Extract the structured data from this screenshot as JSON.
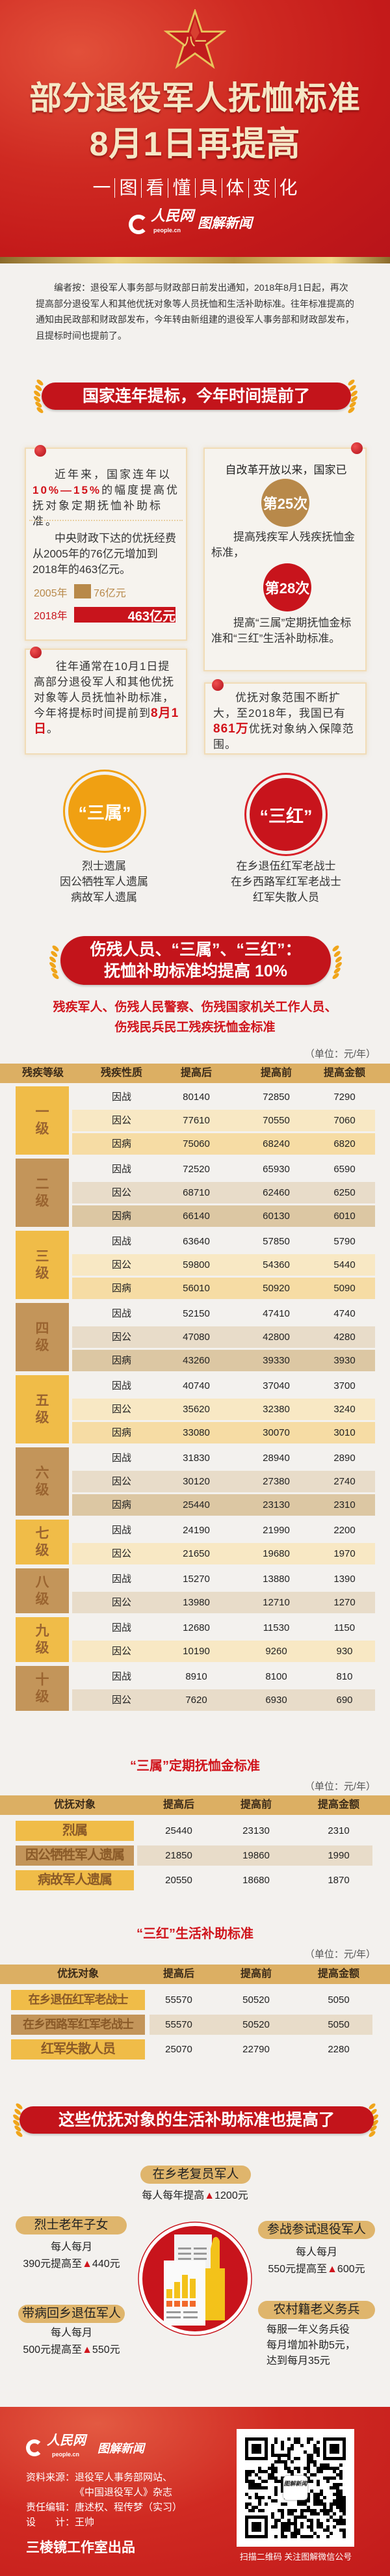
{
  "header": {
    "emblem_text": "八一",
    "title_line1": "部分退役军人抚恤标准",
    "title_line2": "8月1日再提高",
    "subtitle_chars": [
      "一",
      "图",
      "看",
      "懂",
      "具",
      "体",
      "变",
      "化"
    ],
    "logo_people": "人民网",
    "logo_people_sub": "people.cn",
    "logo_tujie": "图解新闻"
  },
  "intro": "编者按：退役军人事务部与财政部日前发出通知，2018年8月1日起，再次提高部分退役军人和其他优抚对象等人员抚恤和生活补助标准。往年标准提高的通知由民政部和财政部发布，今年转由新组建的退役军人事务部和财政部发布，且提标时间也提前了。",
  "section1": {
    "banner": "国家连年提标，今年时间提前了",
    "card_left_1": {
      "p1_before": "近年来，国家连年以",
      "p1_highlight": "10%—15%",
      "p1_after": "的幅度提高优抚对象定期抚恤补助标准。",
      "p2": "中央财政下达的优抚经费从2005年的76亿元增加到2018年的463亿元。",
      "bars": [
        {
          "year": "2005年",
          "label": "76亿元",
          "value": 76,
          "color": "#b8894a"
        },
        {
          "year": "2018年",
          "label": "463亿元",
          "value": 463,
          "color": "#c8141c"
        }
      ]
    },
    "card_right_1": {
      "p1": "自改革开放以来，国家已",
      "badge1": "第25次",
      "p2": "提高残疾军人残疾抚恤金标准，",
      "badge2": "第28次",
      "p3": "提高“三属”定期抚恤金标准和“三红”生活补助标准。"
    },
    "card_left_2": {
      "before": "往年通常在10月1日提高部分退役军人和其他优抚对象等人员抚恤补助标准，今年将提标时间提前到",
      "highlight": "8月1日",
      "after": "。"
    },
    "card_right_2": {
      "before": "优抚对象范围不断扩大，至2018年，我国已有",
      "highlight": "861万",
      "after": "优抚对象纳入保障范围。"
    },
    "sanshu": {
      "label": "“三属”",
      "items": [
        "烈士遗属",
        "因公牺牲军人遗属",
        "病故军人遗属"
      ],
      "color": "#f0a012"
    },
    "sanhong": {
      "label": "“三红”",
      "items": [
        "在乡退伍红军老战士",
        "在乡西路军红军老战士",
        "红军失散人员"
      ],
      "color": "#c8141c"
    }
  },
  "section2": {
    "banner_line1": "伤残人员、“三属”、“三红”：",
    "banner_line2": "抚恤补助标准均提高 10%",
    "subtitle_line1": "残疾军人、伤残人民警察、伤残国家机关工作人员、",
    "subtitle_line2": "伤残民兵民工残疾抚恤金标准",
    "unit": "（单位：元/年）",
    "headers": [
      "残疾等级",
      "残疾性质",
      "提高后",
      "提高前",
      "提高金额"
    ],
    "groups": [
      {
        "grade": "一级",
        "rows": [
          [
            "因战",
            "80140",
            "72850",
            "7290"
          ],
          [
            "因公",
            "77610",
            "70550",
            "7060"
          ],
          [
            "因病",
            "75060",
            "68240",
            "6820"
          ]
        ]
      },
      {
        "grade": "二级",
        "rows": [
          [
            "因战",
            "72520",
            "65930",
            "6590"
          ],
          [
            "因公",
            "68710",
            "62460",
            "6250"
          ],
          [
            "因病",
            "66140",
            "60130",
            "6010"
          ]
        ]
      },
      {
        "grade": "三级",
        "rows": [
          [
            "因战",
            "63640",
            "57850",
            "5790"
          ],
          [
            "因公",
            "59800",
            "54360",
            "5440"
          ],
          [
            "因病",
            "56010",
            "50920",
            "5090"
          ]
        ]
      },
      {
        "grade": "四级",
        "rows": [
          [
            "因战",
            "52150",
            "47410",
            "4740"
          ],
          [
            "因公",
            "47080",
            "42800",
            "4280"
          ],
          [
            "因病",
            "43260",
            "39330",
            "3930"
          ]
        ]
      },
      {
        "grade": "五级",
        "rows": [
          [
            "因战",
            "40740",
            "37040",
            "3700"
          ],
          [
            "因公",
            "35620",
            "32380",
            "3240"
          ],
          [
            "因病",
            "33080",
            "30070",
            "3010"
          ]
        ]
      },
      {
        "grade": "六级",
        "rows": [
          [
            "因战",
            "31830",
            "28940",
            "2890"
          ],
          [
            "因公",
            "30120",
            "27380",
            "2740"
          ],
          [
            "因病",
            "25440",
            "23130",
            "2310"
          ]
        ]
      },
      {
        "grade": "七级",
        "rows": [
          [
            "因战",
            "24190",
            "21990",
            "2200"
          ],
          [
            "因公",
            "21650",
            "19680",
            "1970"
          ]
        ]
      },
      {
        "grade": "八级",
        "rows": [
          [
            "因战",
            "15270",
            "13880",
            "1390"
          ],
          [
            "因公",
            "13980",
            "12710",
            "1270"
          ]
        ]
      },
      {
        "grade": "九级",
        "rows": [
          [
            "因战",
            "12680",
            "11530",
            "1150"
          ],
          [
            "因公",
            "10190",
            "9260",
            "930"
          ]
        ]
      },
      {
        "grade": "十级",
        "rows": [
          [
            "因战",
            "8910",
            "8100",
            "810"
          ],
          [
            "因公",
            "7620",
            "6930",
            "690"
          ]
        ]
      }
    ],
    "sanshu_table": {
      "title": "“三属”定期抚恤金标准",
      "unit": "（单位：元/年）",
      "headers": [
        "优抚对象",
        "提高后",
        "提高前",
        "提高金额"
      ],
      "rows": [
        [
          "烈属",
          "25440",
          "23130",
          "2310"
        ],
        [
          "因公牺牲军人遗属",
          "21850",
          "19860",
          "1990"
        ],
        [
          "病故军人遗属",
          "20550",
          "18680",
          "1870"
        ]
      ]
    },
    "sanhong_table": {
      "title": "“三红”生活补助标准",
      "unit": "（单位：元/年）",
      "headers": [
        "优抚对象",
        "提高后",
        "提高前",
        "提高金额"
      ],
      "rows": [
        [
          "在乡退伍红军老战士",
          "55570",
          "50520",
          "5050"
        ],
        [
          "在乡西路军红军老战士",
          "55570",
          "50520",
          "5050"
        ],
        [
          "红军失散人员",
          "25070",
          "22790",
          "2280"
        ]
      ]
    }
  },
  "section3": {
    "banner": "这些优抚对象的生活补助标准也提高了",
    "center_icon": "document-chart-icon",
    "items": [
      {
        "title": "在乡老复员军人",
        "line1": "每人每年提高",
        "triangle": "▲",
        "line2": "1200元"
      },
      {
        "title": "烈士老年子女",
        "line1": "每人每月",
        "from": "390元提高至",
        "triangle": "▲",
        "to": "440元"
      },
      {
        "title": "参战参试退役军人",
        "line1": "每人每月",
        "from": "550元提高至",
        "triangle": "▲",
        "to": "600元"
      },
      {
        "title": "带病回乡退伍军人",
        "line1": "每人每月",
        "from": "500元提高至",
        "triangle": "▲",
        "to": "550元"
      },
      {
        "title": "农村籍老义务兵",
        "lines": [
          "每服一年义务兵役",
          "每月增加补助5元，",
          "达到每月35元"
        ]
      }
    ]
  },
  "footer": {
    "source_label": "资料来源：",
    "source_line1": "退役军人事务部网站、",
    "source_line2": "《中国退役军人》杂志",
    "editor_label": "责任编辑：",
    "editor": "唐述权、程传梦（实习）",
    "design_label": "设　　计：",
    "designer": "王帅",
    "studio": "三棱镜工作室出品",
    "qr_caption": "扫描二维码 关注图解微信公号",
    "qr_center": "图解新闻"
  },
  "colors": {
    "red": "#c8141c",
    "gold": "#dfb56c",
    "group_gold": "#f0bc48",
    "group_tan": "#c3955a"
  }
}
